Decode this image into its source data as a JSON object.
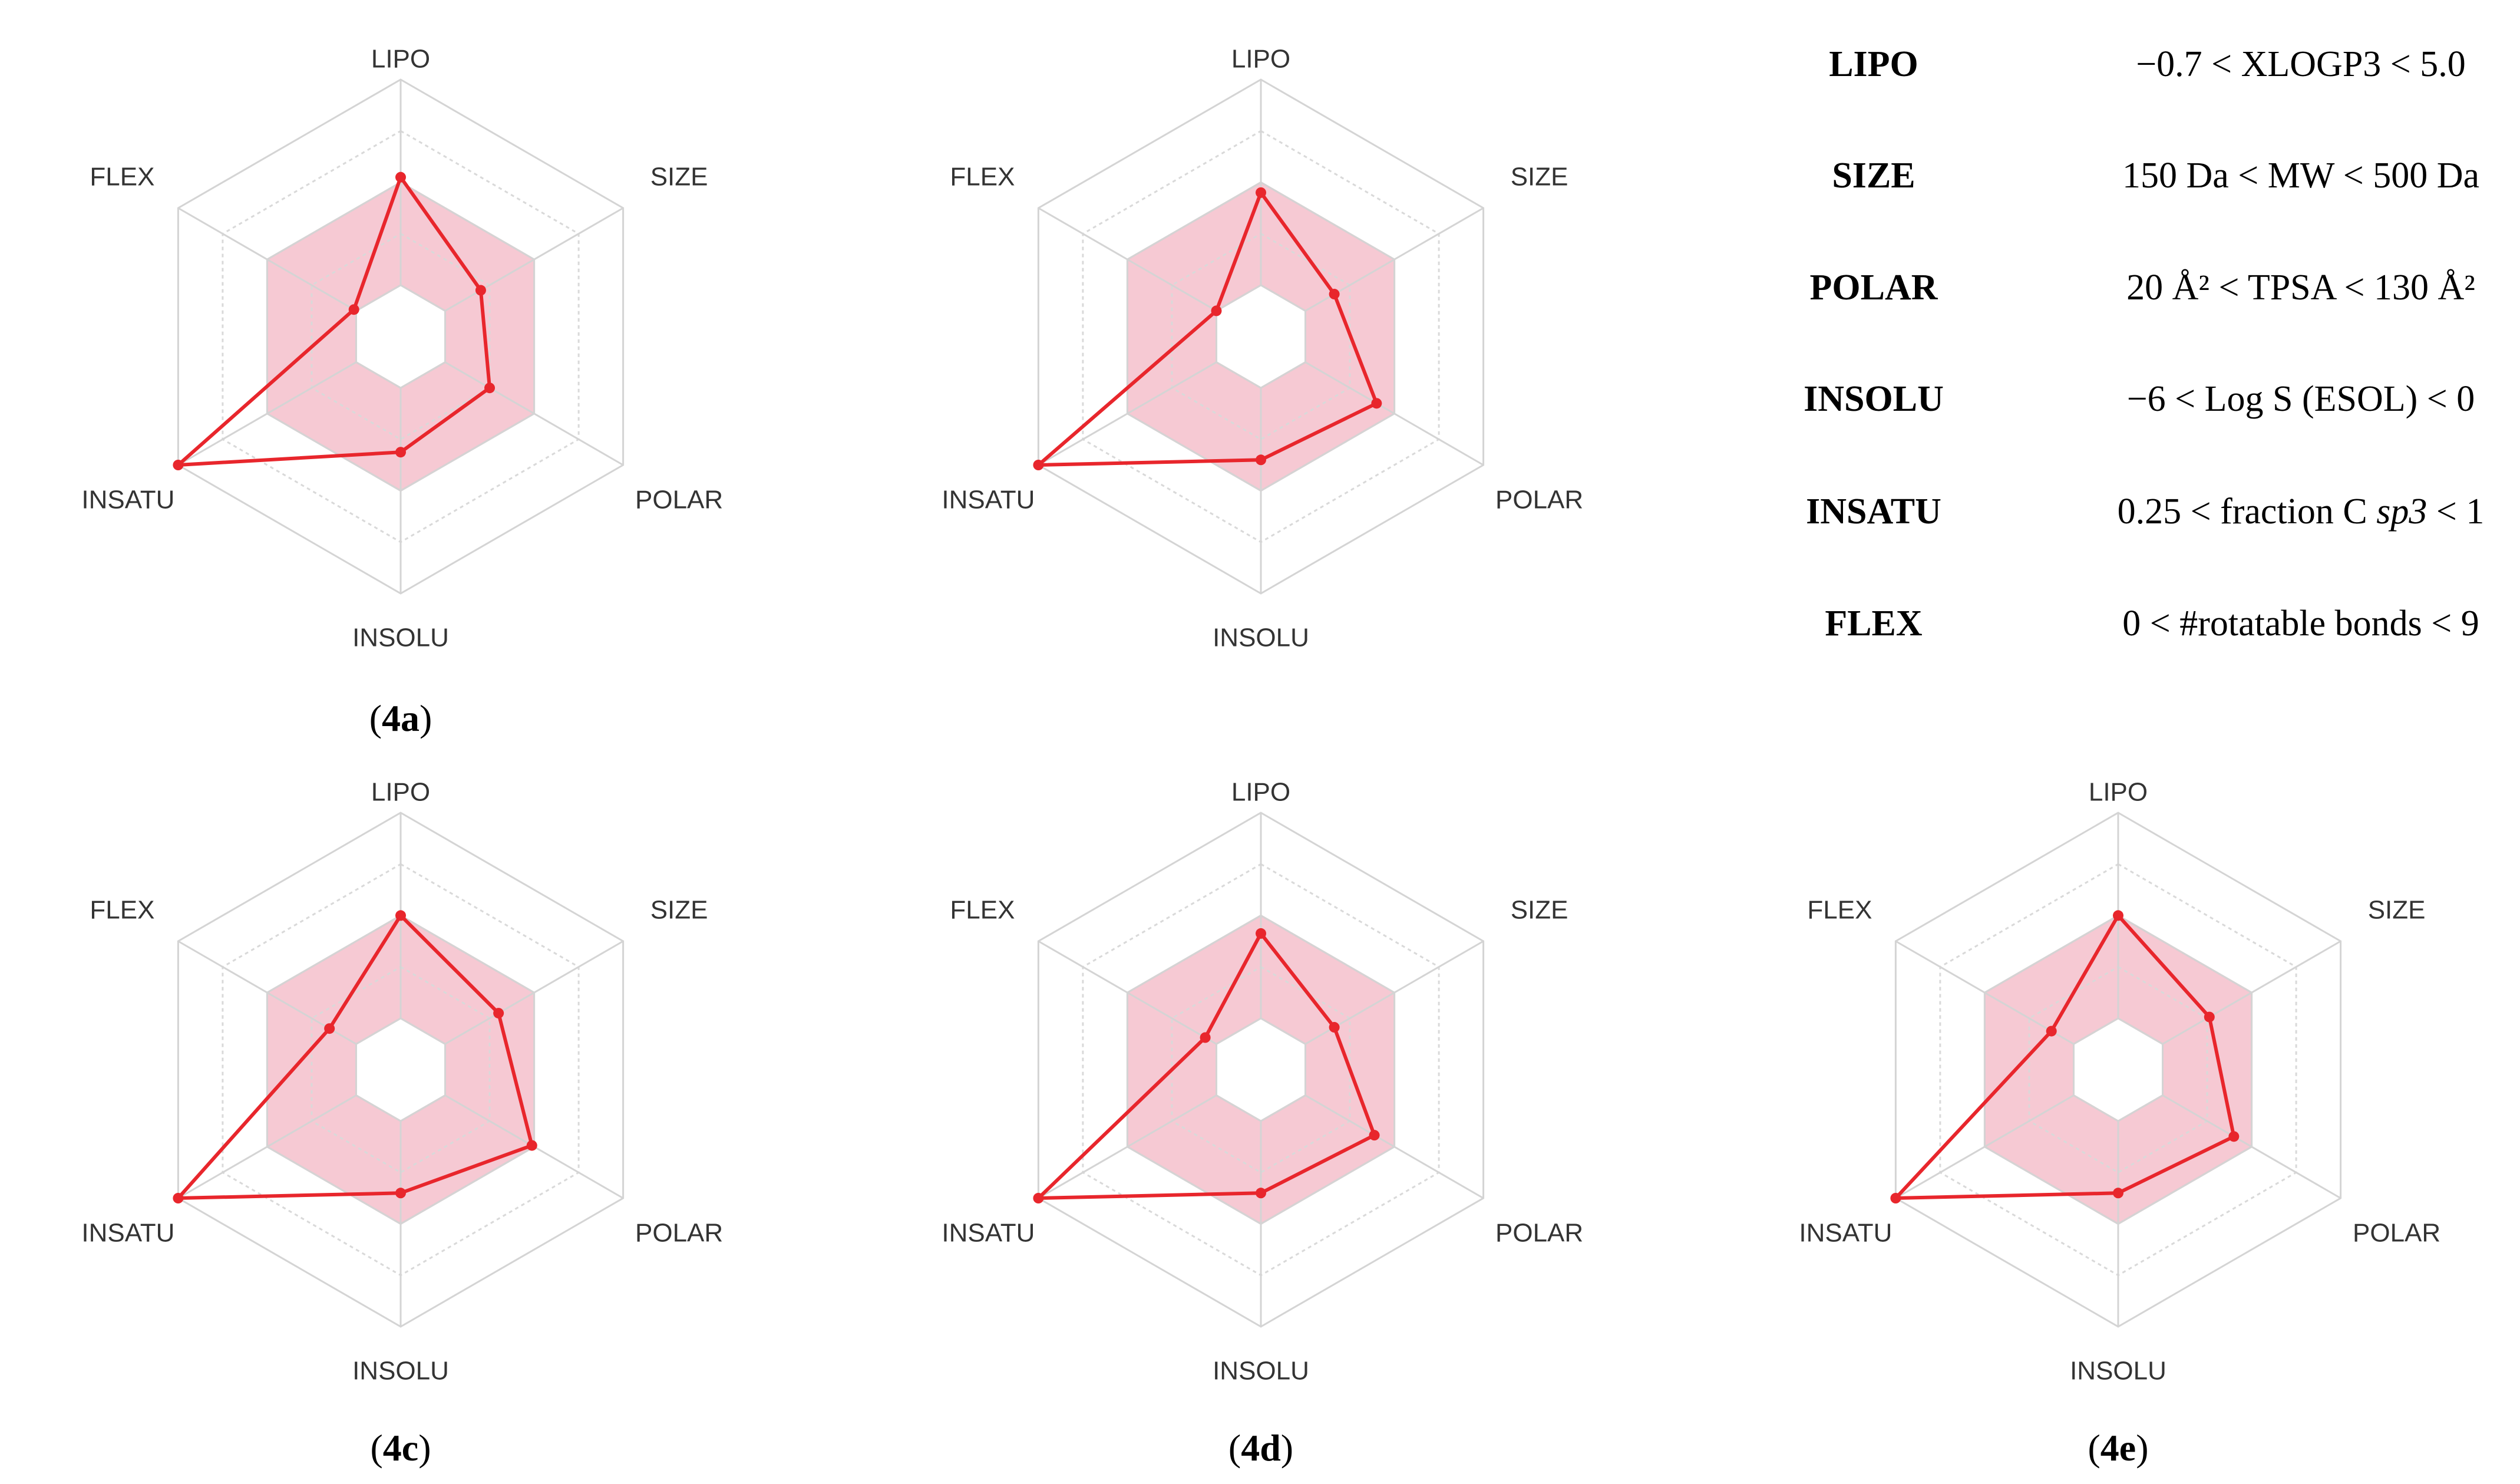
{
  "colors": {
    "optimal_fill": "#f6c9d3",
    "optimal_stroke": "#efb3c1",
    "grid": "#d4d4d4",
    "grid_dotted": "#d9d9d9",
    "compound_line": "#e8262c"
  },
  "axes": [
    "LIPO",
    "SIZE",
    "POLAR",
    "INSOLU",
    "INSATU",
    "FLEX"
  ],
  "criteria": [
    {
      "name": "LIPO",
      "range": "−0.7 < XLOGP3 < 5.0"
    },
    {
      "name": "SIZE",
      "range": "150 Da < MW < 500 Da"
    },
    {
      "name": "POLAR",
      "range": "20 Å² < TPSA < 130 Å²"
    },
    {
      "name": "INSOLU",
      "range": "−6 < Log S (ESOL) < 0"
    },
    {
      "name": "INSATU",
      "range_prefix": "0.25 < fraction C ",
      "range_italic": "sp3",
      "range_suffix": " < 1"
    },
    {
      "name": "FLEX",
      "range": "0 < #rotatable bonds < 9"
    }
  ],
  "chart_data": [
    {
      "type": "radar",
      "panel_label": {
        "open": "(",
        "bold": "4a",
        "close": ")"
      },
      "axes": [
        "LIPO",
        "SIZE",
        "POLAR",
        "INSOLU",
        "INSATU",
        "FLEX"
      ],
      "scale_max": 1.0,
      "optimal_range": {
        "inner": 0.2,
        "outer": 0.6
      },
      "values": [
        0.62,
        0.36,
        0.4,
        0.45,
        1.0,
        0.21
      ]
    },
    {
      "type": "radar",
      "panel_label": null,
      "axes": [
        "LIPO",
        "SIZE",
        "POLAR",
        "INSOLU",
        "INSATU",
        "FLEX"
      ],
      "scale_max": 1.0,
      "optimal_range": {
        "inner": 0.2,
        "outer": 0.6
      },
      "values": [
        0.56,
        0.33,
        0.52,
        0.48,
        1.0,
        0.2
      ]
    },
    {
      "type": "radar",
      "panel_label": {
        "open": "(",
        "bold": "4c",
        "close": ")"
      },
      "axes": [
        "LIPO",
        "SIZE",
        "POLAR",
        "INSOLU",
        "INSATU",
        "FLEX"
      ],
      "scale_max": 1.0,
      "optimal_range": {
        "inner": 0.2,
        "outer": 0.6
      },
      "values": [
        0.6,
        0.44,
        0.59,
        0.48,
        1.0,
        0.32
      ]
    },
    {
      "type": "radar",
      "panel_label": {
        "open": "(",
        "bold": "4d",
        "close": ")"
      },
      "axes": [
        "LIPO",
        "SIZE",
        "POLAR",
        "INSOLU",
        "INSATU",
        "FLEX"
      ],
      "scale_max": 1.0,
      "optimal_range": {
        "inner": 0.2,
        "outer": 0.6
      },
      "values": [
        0.53,
        0.33,
        0.51,
        0.48,
        1.0,
        0.25
      ]
    },
    {
      "type": "radar",
      "panel_label": {
        "open": "(",
        "bold": "4e",
        "close": ")"
      },
      "axes": [
        "LIPO",
        "SIZE",
        "POLAR",
        "INSOLU",
        "INSATU",
        "FLEX"
      ],
      "scale_max": 1.0,
      "optimal_range": {
        "inner": 0.2,
        "outer": 0.6
      },
      "values": [
        0.6,
        0.41,
        0.52,
        0.48,
        1.0,
        0.3
      ]
    }
  ]
}
